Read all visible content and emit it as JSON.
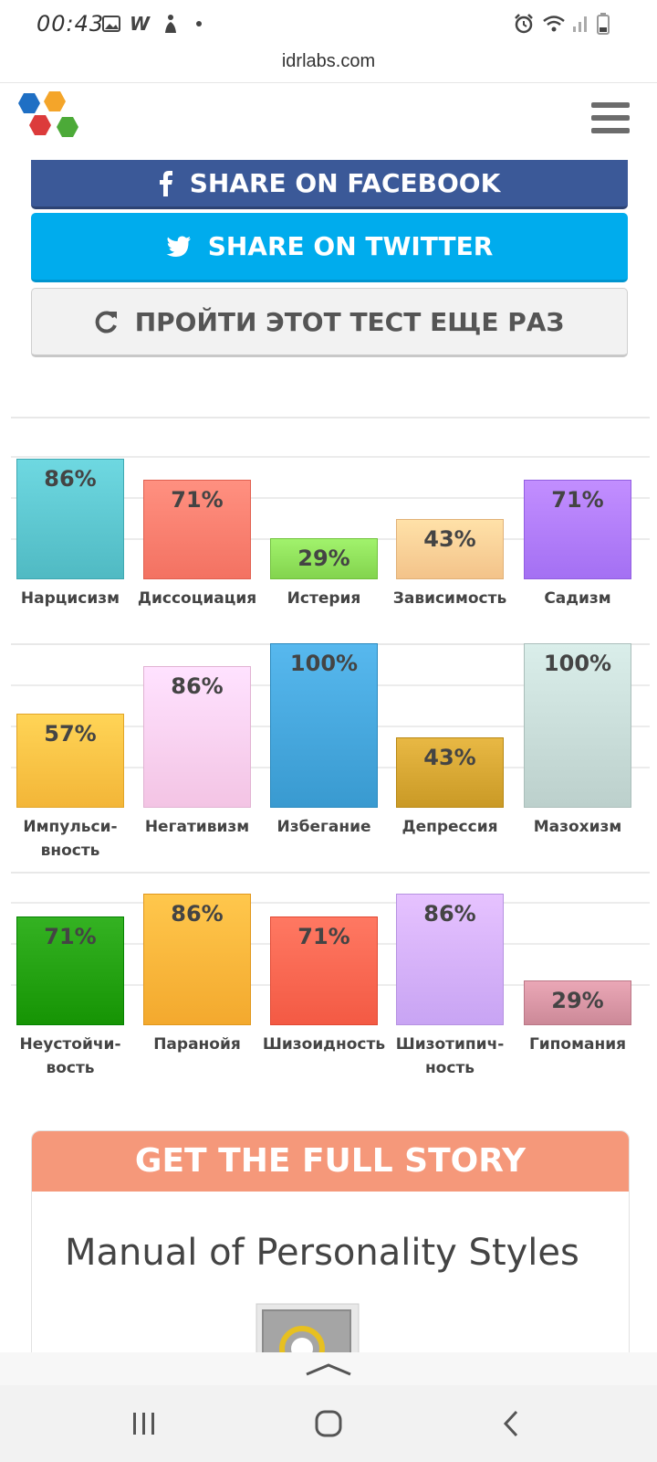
{
  "status_bar": {
    "time": "00:43",
    "icons": [
      "image-icon",
      "w-app-icon",
      "figure-icon",
      "dot-icon",
      "alarm-icon",
      "wifi-icon",
      "signal-icon",
      "battery-icon"
    ]
  },
  "browser": {
    "url": "idrlabs.com"
  },
  "header": {
    "logo": "idrlabs-hexagon-logo",
    "menu_icon": "hamburger-menu-icon"
  },
  "buttons": {
    "facebook": "SHARE ON FACEBOOK",
    "twitter": "SHARE ON TWITTER",
    "retake": "ПРОЙТИ ЭТОТ ТЕСТ ЕЩЕ РАЗ"
  },
  "colors": {
    "facebook": "#3b5998",
    "twitter": "#00aced",
    "story_header": "#f5987a"
  },
  "chart_data": [
    {
      "type": "bar",
      "categories": [
        "Нарцисизм",
        "Диссоциация",
        "Истерия",
        "Зависимость",
        "Садизм"
      ],
      "values": [
        86,
        71,
        29,
        43,
        71
      ],
      "value_labels": [
        "86%",
        "71%",
        "29%",
        "43%",
        "71%"
      ],
      "ylim": [
        0,
        100
      ],
      "colors": [
        "#5cc6cf",
        "#ff7e6e",
        "#8fe05a",
        "#ffcf96",
        "#b07cff"
      ]
    },
    {
      "type": "bar",
      "categories": [
        "Импульси-\nвность",
        "Негативизм",
        "Избегание",
        "Депрессия",
        "Мазохизм"
      ],
      "values": [
        57,
        86,
        100,
        43,
        100
      ],
      "value_labels": [
        "57%",
        "86%",
        "100%",
        "43%",
        "100%"
      ],
      "ylim": [
        0,
        100
      ],
      "colors": [
        "#ffc244",
        "#ffd0f0",
        "#45a6dc",
        "#d6a632",
        "#c8dcd8"
      ]
    },
    {
      "type": "bar",
      "categories": [
        "Неустойчи-\nвость",
        "Паранойя",
        "Шизоидность",
        "Шизотипич-\nность",
        "Гипомания"
      ],
      "values": [
        71,
        86,
        71,
        86,
        29
      ],
      "value_labels": [
        "71%",
        "86%",
        "71%",
        "86%",
        "29%"
      ],
      "ylim": [
        0,
        100
      ],
      "colors": [
        "#22a010",
        "#ffb53a",
        "#ff6650",
        "#d4b0ff",
        "#d895a4"
      ]
    }
  ],
  "story": {
    "header": "GET THE FULL STORY",
    "title": "Manual of Personality Styles"
  },
  "nav": {
    "recent": "recent-apps-icon",
    "home": "home-icon",
    "back": "back-icon"
  }
}
